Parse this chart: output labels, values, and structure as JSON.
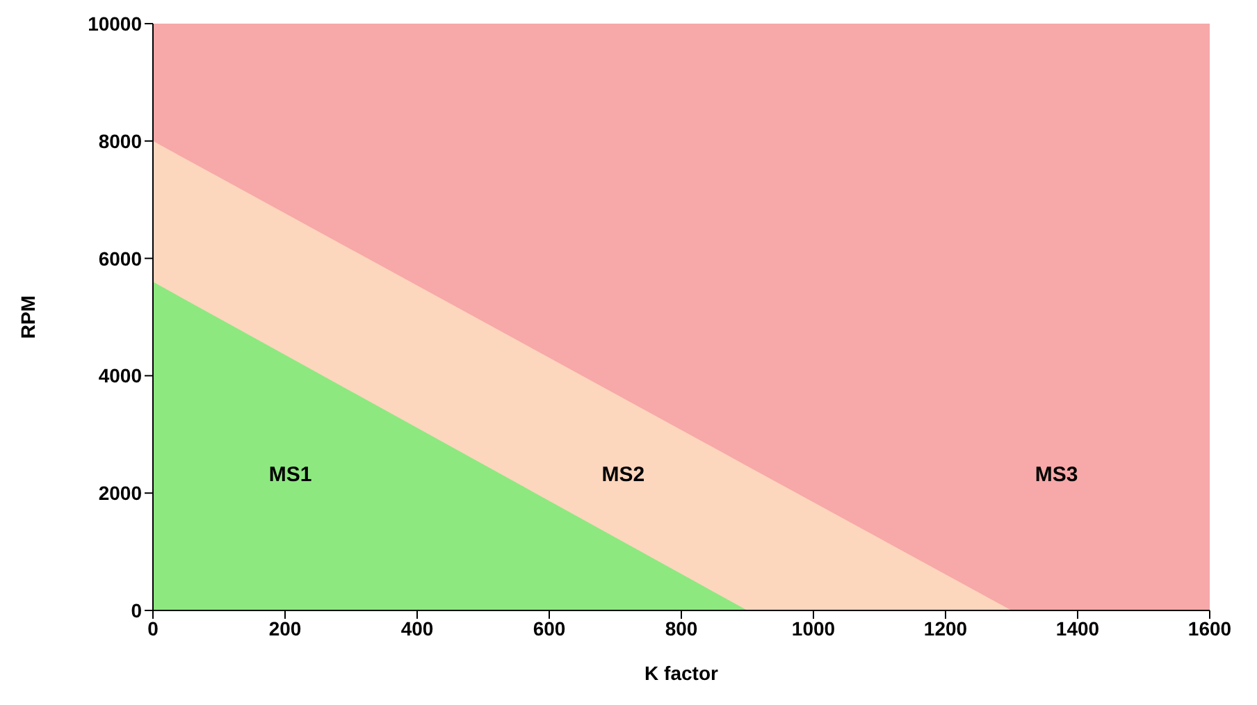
{
  "chart_data": {
    "type": "area",
    "stacked": true,
    "xlabel": "K factor",
    "ylabel": "RPM",
    "x": [
      0,
      900,
      1300,
      1600
    ],
    "xlim": [
      0,
      1600
    ],
    "xticks": [
      0,
      200,
      400,
      600,
      800,
      1000,
      1200,
      1400,
      1600
    ],
    "ylim": [
      0,
      10000
    ],
    "yticks": [
      0,
      2000,
      4000,
      6000,
      8000,
      10000
    ],
    "grid": false,
    "legend": false,
    "series": [
      {
        "color": "#8de880",
        "values": [
          5600,
          0,
          0,
          0
        ]
      },
      {
        "color": "#fcd6bd",
        "values": [
          2400,
          2460,
          0,
          0
        ]
      },
      {
        "color": "#f7a8a8",
        "values": [
          2000,
          7540,
          10000,
          10000
        ]
      }
    ],
    "annotations": [
      "MS1",
      "MS2",
      "MS3"
    ]
  }
}
